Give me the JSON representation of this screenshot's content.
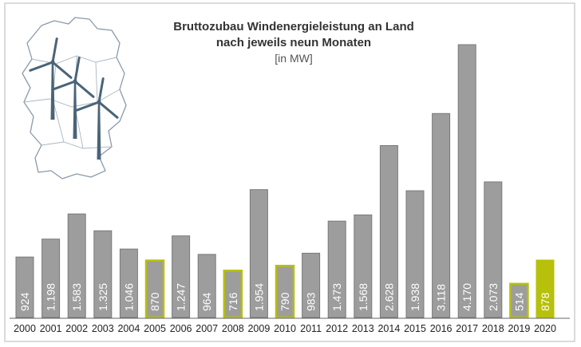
{
  "chart_data": {
    "type": "bar",
    "title": "Bruttozubau Windenergieleistung an Land",
    "subtitle": "nach jeweils neun Monaten",
    "unit": "[in MW]",
    "categories": [
      "2000",
      "2001",
      "2002",
      "2003",
      "2004",
      "2005",
      "2006",
      "2007",
      "2008",
      "2009",
      "2010",
      "2011",
      "2012",
      "2013",
      "2014",
      "2015",
      "2016",
      "2017",
      "2018",
      "2019",
      "2020"
    ],
    "values": [
      924,
      1198,
      1583,
      1325,
      1046,
      870,
      1247,
      964,
      716,
      1954,
      790,
      983,
      1473,
      1568,
      2628,
      1938,
      3118,
      4170,
      2073,
      514,
      878
    ],
    "value_labels": [
      "924",
      "1.198",
      "1.583",
      "1.325",
      "1.046",
      "870",
      "1.247",
      "964",
      "716",
      "1.954",
      "790",
      "983",
      "1.473",
      "1.568",
      "2.628",
      "1.938",
      "3.118",
      "4.170",
      "2.073",
      "514",
      "878"
    ],
    "highlight_styles": [
      "gray",
      "gray",
      "gray",
      "gray",
      "gray",
      "outline",
      "gray",
      "gray",
      "outline",
      "gray",
      "outline",
      "gray",
      "gray",
      "gray",
      "gray",
      "gray",
      "gray",
      "gray",
      "gray",
      "outline",
      "filled"
    ],
    "colors": {
      "bar_fill": "#9d9d9d",
      "bar_stroke": "#7a7a7a",
      "highlight_fill": "#b7c00a",
      "highlight_stroke": "#b7c00a",
      "frame_border": "#cfcfcf",
      "title_color": "#333333",
      "map_stroke": "#8a9aa8",
      "turbine_color": "#4a6478"
    },
    "ylim": [
      0,
      4500
    ],
    "grid": false,
    "decoration": {
      "map_icon": "germany-map-icon",
      "turbine_icon": "wind-turbine-icon"
    }
  }
}
